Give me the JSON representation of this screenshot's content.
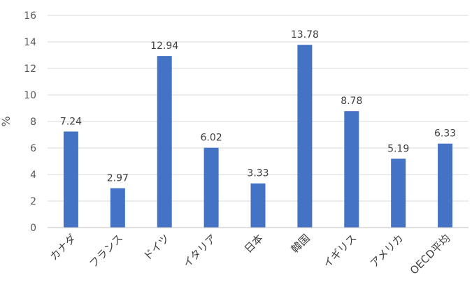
{
  "chart_data": {
    "type": "bar",
    "title": "",
    "xlabel": "",
    "ylabel": "%",
    "ylim": [
      0,
      16
    ],
    "yticks": [
      0,
      2,
      4,
      6,
      8,
      10,
      12,
      14,
      16
    ],
    "grid": true,
    "legend": "none",
    "categories": [
      "カナダ",
      "フランス",
      "ドイツ",
      "イタリア",
      "日本",
      "韓国",
      "イギリス",
      "アメリカ",
      "OECD平均"
    ],
    "values": [
      7.24,
      2.97,
      12.94,
      6.02,
      3.33,
      13.78,
      8.78,
      5.19,
      6.33
    ],
    "data_labels": [
      "7.24",
      "2.97",
      "12.94",
      "6.02",
      "3.33",
      "13.78",
      "8.78",
      "5.19",
      "6.33"
    ],
    "colors": {
      "bar": "#4472C4",
      "grid": "#D9D9D9",
      "axis": "#BFBFBF"
    }
  }
}
